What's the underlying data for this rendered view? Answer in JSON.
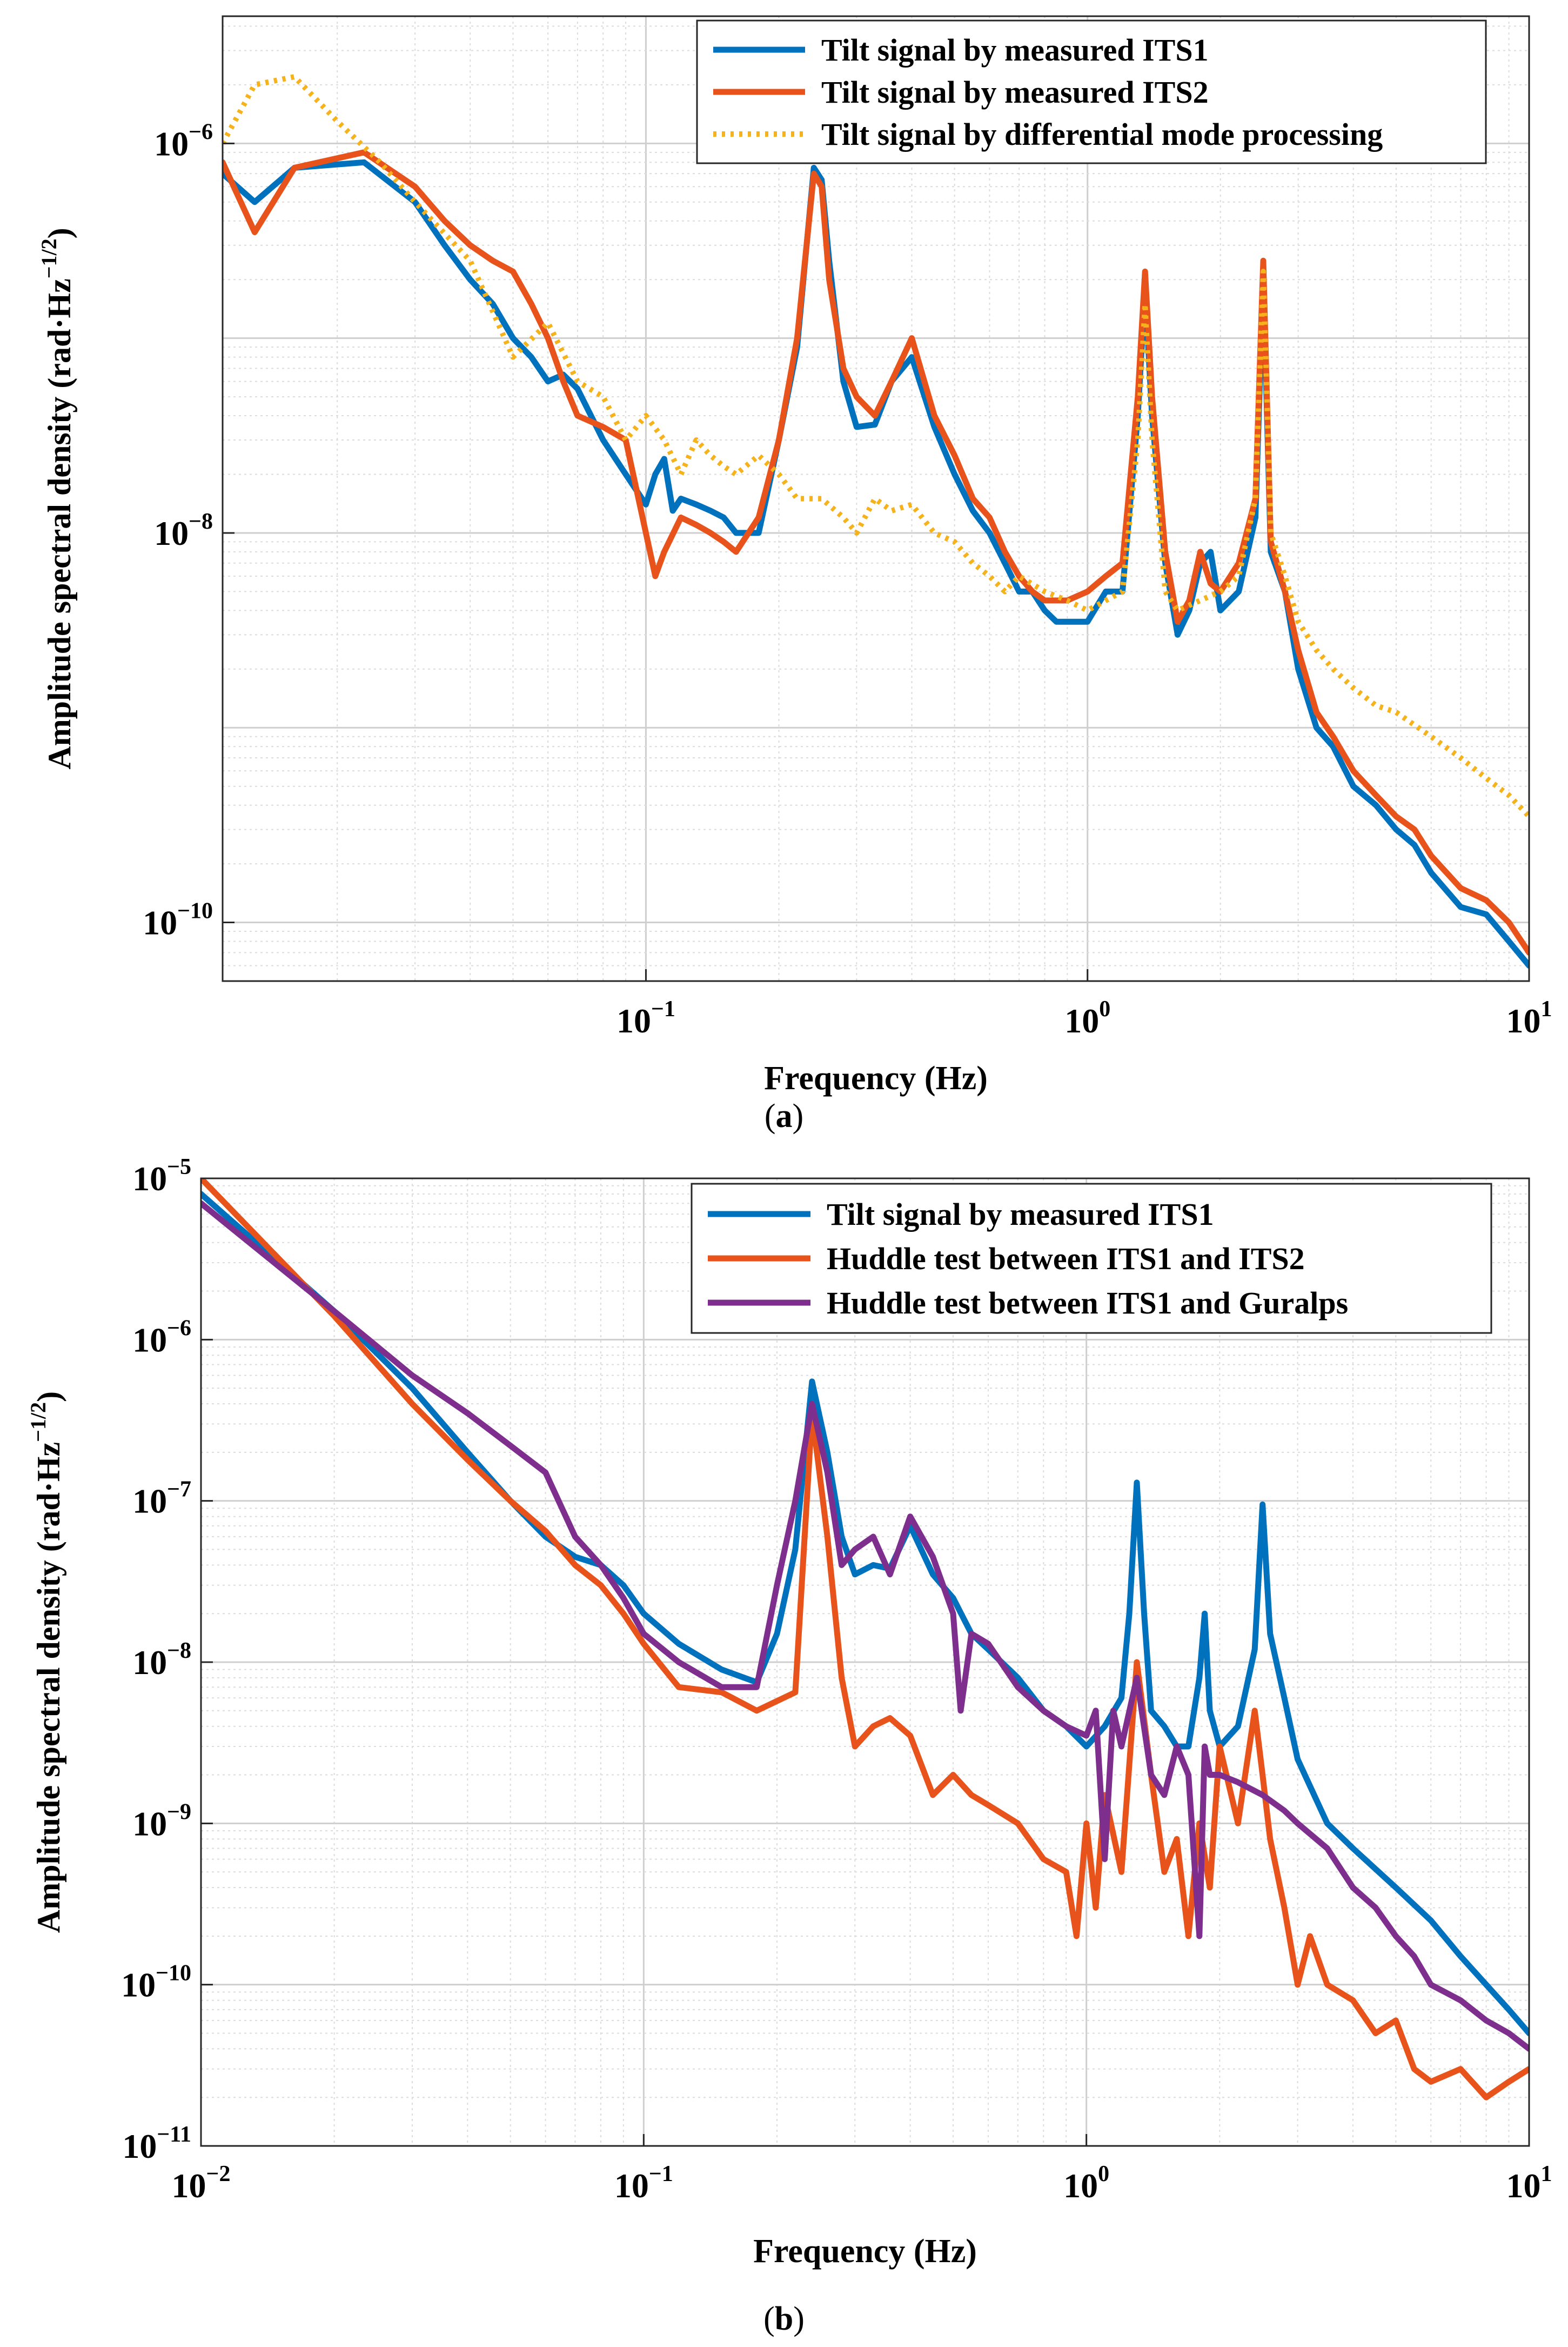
{
  "chart_data": [
    {
      "id": "a",
      "type": "line",
      "panel_label": "a",
      "title": "",
      "xlabel": "Frequency (Hz)",
      "ylabel": "Amplitude spectral density (rad·Hz",
      "ylabel_exponent": "−1/2",
      "ylabel_close": ")",
      "xscale": "log",
      "yscale": "log",
      "xlim": [
        0.011,
        10.0
      ],
      "ylim": [
        5e-11,
        4.5e-06
      ],
      "grid": true,
      "legend_position": "top-right",
      "xticks": [
        {
          "value": 0.1,
          "base": "10",
          "exp": "−1"
        },
        {
          "value": 1,
          "base": "10",
          "exp": "0"
        },
        {
          "value": 10,
          "base": "10",
          "exp": "1"
        }
      ],
      "yticks": [
        {
          "value": 1e-10,
          "base": "10",
          "exp": "−10"
        },
        {
          "value": 1e-08,
          "base": "10",
          "exp": "−8"
        },
        {
          "value": 1e-06,
          "base": "10",
          "exp": "−6"
        }
      ],
      "series": [
        {
          "name": "Tilt signal by measured ITS1",
          "color": "#0072BD",
          "dash": "solid",
          "x": [
            0.011,
            0.013,
            0.016,
            0.023,
            0.03,
            0.035,
            0.04,
            0.045,
            0.05,
            0.055,
            0.06,
            0.065,
            0.07,
            0.08,
            0.09,
            0.1,
            0.105,
            0.11,
            0.115,
            0.12,
            0.13,
            0.14,
            0.15,
            0.16,
            0.18,
            0.2,
            0.22,
            0.24,
            0.25,
            0.26,
            0.28,
            0.3,
            0.33,
            0.36,
            0.4,
            0.45,
            0.5,
            0.55,
            0.6,
            0.65,
            0.7,
            0.75,
            0.8,
            0.85,
            0.9,
            1.0,
            1.1,
            1.2,
            1.3,
            1.35,
            1.4,
            1.5,
            1.6,
            1.7,
            1.8,
            1.9,
            2.0,
            2.2,
            2.4,
            2.5,
            2.6,
            2.8,
            3.0,
            3.3,
            3.6,
            4.0,
            4.5,
            5.0,
            5.5,
            6.0,
            7.0,
            8.0,
            9.0,
            10.0
          ],
          "y": [
            7e-07,
            5e-07,
            7.5e-07,
            8e-07,
            5e-07,
            3e-07,
            2e-07,
            1.5e-07,
            1e-07,
            8e-08,
            6e-08,
            6.5e-08,
            5.5e-08,
            3e-08,
            2e-08,
            1.4e-08,
            2e-08,
            2.4e-08,
            1.3e-08,
            1.5e-08,
            1.4e-08,
            1.3e-08,
            1.2e-08,
            1e-08,
            1e-08,
            3e-08,
            9e-08,
            7.5e-07,
            6.5e-07,
            2.5e-07,
            6e-08,
            3.5e-08,
            3.6e-08,
            6e-08,
            8e-08,
            3.5e-08,
            2e-08,
            1.3e-08,
            1e-08,
            7e-09,
            5e-09,
            5e-09,
            4e-09,
            3.5e-09,
            3.5e-09,
            3.5e-09,
            5e-09,
            5e-09,
            4e-08,
            1.8e-07,
            4e-08,
            7e-09,
            3e-09,
            4e-09,
            7e-09,
            8e-09,
            4e-09,
            5e-09,
            1.2e-08,
            2e-07,
            8e-09,
            5e-09,
            2e-09,
            1e-09,
            8e-10,
            5e-10,
            4e-10,
            3e-10,
            2.5e-10,
            1.8e-10,
            1.2e-10,
            1.1e-10,
            8e-11,
            6e-11
          ]
        },
        {
          "name": "Tilt signal by measured ITS2",
          "color": "#E8531B",
          "dash": "solid",
          "x": [
            0.011,
            0.013,
            0.016,
            0.023,
            0.03,
            0.035,
            0.04,
            0.045,
            0.05,
            0.055,
            0.06,
            0.065,
            0.07,
            0.08,
            0.09,
            0.1,
            0.105,
            0.11,
            0.12,
            0.13,
            0.14,
            0.15,
            0.16,
            0.18,
            0.2,
            0.22,
            0.24,
            0.25,
            0.26,
            0.28,
            0.3,
            0.33,
            0.36,
            0.4,
            0.45,
            0.5,
            0.55,
            0.6,
            0.65,
            0.7,
            0.75,
            0.8,
            0.85,
            0.9,
            1.0,
            1.1,
            1.2,
            1.3,
            1.35,
            1.4,
            1.5,
            1.6,
            1.7,
            1.8,
            1.9,
            2.0,
            2.2,
            2.4,
            2.5,
            2.6,
            2.8,
            3.0,
            3.3,
            3.6,
            4.0,
            4.5,
            5.0,
            5.5,
            6.0,
            7.0,
            8.0,
            9.0,
            10.0
          ],
          "y": [
            8e-07,
            3.5e-07,
            7.5e-07,
            9e-07,
            6e-07,
            4e-07,
            3e-07,
            2.5e-07,
            2.2e-07,
            1.5e-07,
            1e-07,
            6e-08,
            4e-08,
            3.5e-08,
            3e-08,
            1e-08,
            6e-09,
            8e-09,
            1.2e-08,
            1.1e-08,
            1e-08,
            9e-09,
            8e-09,
            1.2e-08,
            3e-08,
            1e-07,
            7e-07,
            6e-07,
            2e-07,
            7e-08,
            5e-08,
            4e-08,
            6e-08,
            1e-07,
            4e-08,
            2.5e-08,
            1.5e-08,
            1.2e-08,
            8e-09,
            6e-09,
            5e-09,
            4.5e-09,
            4.5e-09,
            4.5e-09,
            5e-09,
            6e-09,
            7e-09,
            5e-08,
            2.2e-07,
            5e-08,
            8e-09,
            3.5e-09,
            4.5e-09,
            8e-09,
            5.5e-09,
            5e-09,
            7e-09,
            1.5e-08,
            2.5e-07,
            9e-09,
            5e-09,
            2.5e-09,
            1.2e-09,
            9e-10,
            6e-10,
            4.5e-10,
            3.5e-10,
            3e-10,
            2.2e-10,
            1.5e-10,
            1.3e-10,
            1e-10,
            7e-11
          ]
        },
        {
          "name": "Tilt signal by differential mode processing",
          "color": "#F5B21B",
          "dash": "dotted",
          "x": [
            0.011,
            0.013,
            0.016,
            0.02,
            0.025,
            0.03,
            0.04,
            0.05,
            0.06,
            0.07,
            0.08,
            0.09,
            0.1,
            0.11,
            0.12,
            0.13,
            0.14,
            0.15,
            0.16,
            0.18,
            0.2,
            0.22,
            0.25,
            0.28,
            0.3,
            0.33,
            0.36,
            0.4,
            0.45,
            0.5,
            0.55,
            0.6,
            0.65,
            0.7,
            0.8,
            0.9,
            1.0,
            1.1,
            1.2,
            1.3,
            1.35,
            1.4,
            1.5,
            1.6,
            1.8,
            2.0,
            2.2,
            2.4,
            2.5,
            2.6,
            2.8,
            3.0,
            3.3,
            3.6,
            4.0,
            4.5,
            5.0,
            6.0,
            7.0,
            8.0,
            9.0,
            10.0
          ],
          "y": [
            1e-06,
            2e-06,
            2.2e-06,
            1.3e-06,
            8e-07,
            5e-07,
            2.5e-07,
            8e-08,
            1.2e-07,
            6e-08,
            5e-08,
            3e-08,
            4e-08,
            3e-08,
            2e-08,
            3e-08,
            2.5e-08,
            2.2e-08,
            2e-08,
            2.5e-08,
            2e-08,
            1.5e-08,
            1.5e-08,
            1.2e-08,
            1e-08,
            1.5e-08,
            1.3e-08,
            1.4e-08,
            1e-08,
            9e-09,
            7e-09,
            6e-09,
            5e-09,
            6e-09,
            5e-09,
            4.5e-09,
            4e-09,
            4.5e-09,
            5e-09,
            3e-08,
            1.5e-07,
            3e-08,
            5e-09,
            4e-09,
            4.5e-09,
            5e-09,
            6e-09,
            1.5e-08,
            2.2e-07,
            1e-08,
            6e-09,
            3.5e-09,
            2.5e-09,
            2e-09,
            1.6e-09,
            1.3e-09,
            1.2e-09,
            9e-10,
            7e-10,
            5.5e-10,
            4.5e-10,
            3.5e-10
          ]
        }
      ]
    },
    {
      "id": "b",
      "type": "line",
      "panel_label": "b",
      "title": "",
      "xlabel": "Frequency (Hz)",
      "ylabel": "Amplitude spectral density (rad·Hz",
      "ylabel_exponent": "−1/2",
      "ylabel_close": ")",
      "xscale": "log",
      "yscale": "log",
      "xlim": [
        0.01,
        10.0
      ],
      "ylim": [
        1e-11,
        1e-05
      ],
      "grid": true,
      "legend_position": "top-right",
      "xticks": [
        {
          "value": 0.01,
          "base": "10",
          "exp": "−2"
        },
        {
          "value": 0.1,
          "base": "10",
          "exp": "−1"
        },
        {
          "value": 1,
          "base": "10",
          "exp": "0"
        },
        {
          "value": 10,
          "base": "10",
          "exp": "1"
        }
      ],
      "yticks": [
        {
          "value": 1e-11,
          "base": "10",
          "exp": "−11"
        },
        {
          "value": 1e-10,
          "base": "10",
          "exp": "−10"
        },
        {
          "value": 1e-09,
          "base": "10",
          "exp": "−9"
        },
        {
          "value": 1e-08,
          "base": "10",
          "exp": "−8"
        },
        {
          "value": 1e-07,
          "base": "10",
          "exp": "−7"
        },
        {
          "value": 1e-06,
          "base": "10",
          "exp": "−6"
        },
        {
          "value": 1e-05,
          "base": "10",
          "exp": "−5"
        }
      ],
      "series": [
        {
          "name": "Tilt signal by measured ITS1",
          "color": "#0072BD",
          "dash": "solid",
          "x": [
            0.01,
            0.02,
            0.03,
            0.04,
            0.05,
            0.06,
            0.07,
            0.08,
            0.09,
            0.1,
            0.12,
            0.15,
            0.18,
            0.2,
            0.22,
            0.24,
            0.26,
            0.28,
            0.3,
            0.33,
            0.36,
            0.4,
            0.45,
            0.5,
            0.55,
            0.6,
            0.7,
            0.8,
            0.9,
            1.0,
            1.1,
            1.2,
            1.25,
            1.3,
            1.35,
            1.4,
            1.5,
            1.6,
            1.7,
            1.8,
            1.85,
            1.9,
            2.0,
            2.2,
            2.4,
            2.5,
            2.6,
            2.8,
            3.0,
            3.5,
            4.0,
            5.0,
            6.0,
            7.0,
            8.0,
            9.0,
            10.0
          ],
          "y": [
            8e-06,
            1.5e-06,
            5e-07,
            2e-07,
            1e-07,
            6e-08,
            4.5e-08,
            4e-08,
            3e-08,
            2e-08,
            1.3e-08,
            9e-09,
            7.5e-09,
            1.5e-08,
            5e-08,
            5.5e-07,
            2e-07,
            6e-08,
            3.5e-08,
            4e-08,
            3.8e-08,
            7e-08,
            3.5e-08,
            2.5e-08,
            1.5e-08,
            1.2e-08,
            8e-09,
            5e-09,
            4e-09,
            3e-09,
            4e-09,
            6e-09,
            2e-08,
            1.3e-07,
            2e-08,
            5e-09,
            4e-09,
            3e-09,
            3e-09,
            8e-09,
            2e-08,
            5e-09,
            3e-09,
            4e-09,
            1.2e-08,
            9.5e-08,
            1.5e-08,
            6e-09,
            2.5e-09,
            1e-09,
            7e-10,
            4e-10,
            2.5e-10,
            1.5e-10,
            1e-10,
            7e-11,
            5e-11
          ]
        },
        {
          "name": "Huddle test between ITS1 and ITS2",
          "color": "#E8531B",
          "dash": "solid",
          "x": [
            0.01,
            0.02,
            0.03,
            0.04,
            0.05,
            0.06,
            0.07,
            0.08,
            0.09,
            0.1,
            0.12,
            0.15,
            0.18,
            0.22,
            0.24,
            0.26,
            0.28,
            0.3,
            0.33,
            0.36,
            0.4,
            0.45,
            0.5,
            0.55,
            0.6,
            0.7,
            0.8,
            0.9,
            0.95,
            1.0,
            1.05,
            1.1,
            1.2,
            1.3,
            1.4,
            1.5,
            1.6,
            1.7,
            1.8,
            1.9,
            2.0,
            2.2,
            2.4,
            2.5,
            2.6,
            2.8,
            3.0,
            3.2,
            3.5,
            4.0,
            4.5,
            5.0,
            5.5,
            6.0,
            7.0,
            8.0,
            9.0,
            10.0
          ],
          "y": [
            1e-05,
            1.4e-06,
            4e-07,
            1.8e-07,
            1e-07,
            6.5e-08,
            4e-08,
            3e-08,
            2e-08,
            1.3e-08,
            7e-09,
            6.5e-09,
            5e-09,
            6.5e-09,
            3.5e-07,
            6e-08,
            8e-09,
            3e-09,
            4e-09,
            4.5e-09,
            3.5e-09,
            1.5e-09,
            2e-09,
            1.5e-09,
            1.3e-09,
            1e-09,
            6e-10,
            5e-10,
            2e-10,
            1e-09,
            3e-10,
            1.5e-09,
            5e-10,
            1e-08,
            2e-09,
            5e-10,
            8e-10,
            2e-10,
            1e-09,
            4e-10,
            3e-09,
            1e-09,
            5e-09,
            2e-09,
            8e-10,
            3e-10,
            1e-10,
            2e-10,
            1e-10,
            8e-11,
            5e-11,
            6e-11,
            3e-11,
            2.5e-11,
            3e-11,
            2e-11,
            2.5e-11,
            3e-11
          ]
        },
        {
          "name": "Huddle test between ITS1 and Guralps",
          "color": "#7E2F8E",
          "dash": "solid",
          "x": [
            0.01,
            0.02,
            0.03,
            0.04,
            0.05,
            0.06,
            0.07,
            0.08,
            0.09,
            0.1,
            0.12,
            0.15,
            0.18,
            0.2,
            0.22,
            0.24,
            0.26,
            0.28,
            0.3,
            0.33,
            0.36,
            0.4,
            0.45,
            0.5,
            0.52,
            0.55,
            0.6,
            0.7,
            0.8,
            0.9,
            1.0,
            1.05,
            1.1,
            1.15,
            1.2,
            1.3,
            1.4,
            1.5,
            1.6,
            1.7,
            1.8,
            1.85,
            1.9,
            2.0,
            2.2,
            2.5,
            2.8,
            3.0,
            3.5,
            4.0,
            4.5,
            5.0,
            5.5,
            6.0,
            7.0,
            8.0,
            9.0,
            10.0
          ],
          "y": [
            7e-06,
            1.5e-06,
            6e-07,
            3.5e-07,
            2.2e-07,
            1.5e-07,
            6e-08,
            4e-08,
            2.5e-08,
            1.5e-08,
            1e-08,
            7e-09,
            7e-09,
            3e-08,
            1e-07,
            4e-07,
            1.5e-07,
            4e-08,
            5e-08,
            6e-08,
            3.5e-08,
            8e-08,
            4.5e-08,
            2e-08,
            5e-09,
            1.5e-08,
            1.3e-08,
            7e-09,
            5e-09,
            4e-09,
            3.5e-09,
            5e-09,
            6e-10,
            5e-09,
            3e-09,
            8e-09,
            2e-09,
            1.5e-09,
            3e-09,
            2e-09,
            2e-10,
            3e-09,
            2e-09,
            2e-09,
            1.8e-09,
            1.5e-09,
            1.2e-09,
            1e-09,
            7e-10,
            4e-10,
            3e-10,
            2e-10,
            1.5e-10,
            1e-10,
            8e-11,
            6e-11,
            5e-11,
            4e-11
          ]
        }
      ]
    }
  ]
}
